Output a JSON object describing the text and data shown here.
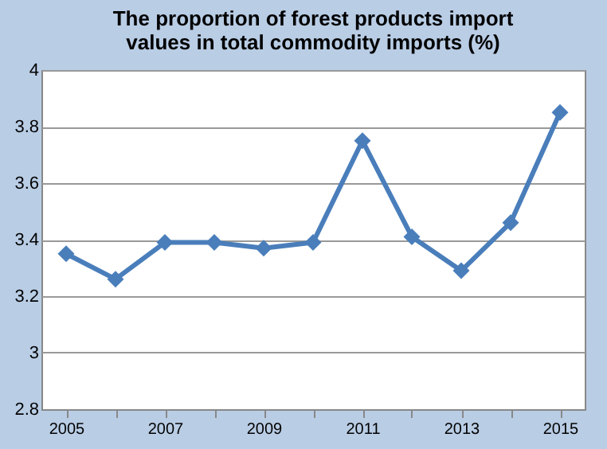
{
  "chart_data": {
    "type": "line",
    "title": "The proportion of forest products import values in total  commodity imports (%)",
    "categories": [
      "2005",
      null,
      "2007",
      null,
      "2009",
      null,
      "2011",
      null,
      "2013",
      null,
      "2015"
    ],
    "series": [
      {
        "color": "#4a7ebb",
        "values": [
          3.35,
          3.26,
          3.39,
          3.39,
          3.37,
          3.39,
          3.75,
          3.41,
          3.29,
          3.46,
          3.85
        ]
      }
    ],
    "ylim": [
      2.8,
      4
    ],
    "yticks": [
      2.8,
      3,
      3.2,
      3.4,
      3.6,
      3.8,
      4
    ],
    "grid": "y",
    "marker": "diamond",
    "line_style": "solid"
  }
}
